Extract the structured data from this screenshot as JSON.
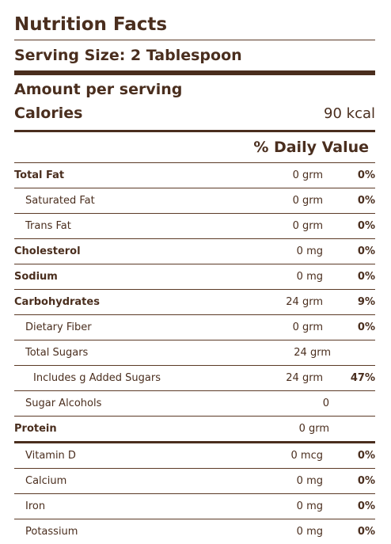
{
  "title": "Nutrition Facts",
  "serving_size": "Serving Size: 2 Tablespoon",
  "amount_per_serving": "Amount per serving",
  "calories": {
    "label": "Calories",
    "value": "90 kcal"
  },
  "daily_value_header": "% Daily Value",
  "rows": [
    {
      "name": "Total Fat",
      "amount": "0 grm",
      "dv": "0%"
    },
    {
      "name": "Saturated Fat",
      "amount": "0 grm",
      "dv": "0%"
    },
    {
      "name": "Trans Fat",
      "amount": "0 grm",
      "dv": "0%"
    },
    {
      "name": "Cholesterol",
      "amount": "0 mg",
      "dv": "0%"
    },
    {
      "name": "Sodium",
      "amount": "0 mg",
      "dv": "0%"
    },
    {
      "name": "Carbohydrates",
      "amount": "24 grm",
      "dv": "9%"
    },
    {
      "name": "Dietary Fiber",
      "amount": "0 grm",
      "dv": "0%"
    },
    {
      "name": "Total Sugars",
      "amount": "24 grm",
      "dv": ""
    },
    {
      "name": "Includes g Added Sugars",
      "amount": "24 grm",
      "dv": "47%"
    },
    {
      "name": "Sugar Alcohols",
      "amount": "0",
      "dv": ""
    },
    {
      "name": "Protein",
      "amount": "0 grm",
      "dv": ""
    },
    {
      "name": "Vitamin D",
      "amount": "0 mcg",
      "dv": "0%"
    },
    {
      "name": "Calcium",
      "amount": "0 mg",
      "dv": "0%"
    },
    {
      "name": "Iron",
      "amount": "0 mg",
      "dv": "0%"
    },
    {
      "name": "Potassium",
      "amount": "0 mg",
      "dv": "0%"
    }
  ]
}
